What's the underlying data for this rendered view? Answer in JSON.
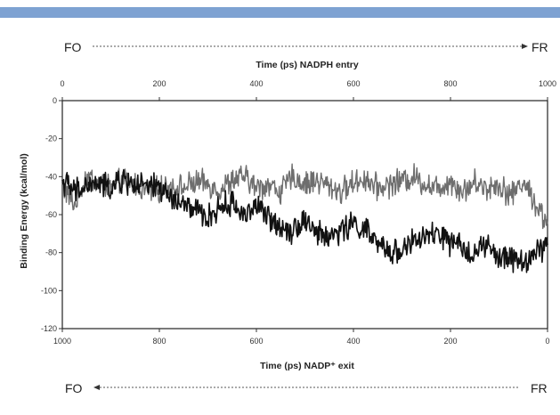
{
  "header_bar_color": "#7ea2d2",
  "direction_top": {
    "start": "FO",
    "end": "FR"
  },
  "direction_bottom": {
    "start": "FO",
    "end": "FR"
  },
  "chart_data": {
    "type": "line",
    "title": "",
    "ylabel": "Binding Energy (kcal/mol)",
    "xlabel_top": "Time (ps) NADPH entry",
    "xlabel_bottom": "Time (ps) NADP⁺ exit",
    "xlim": [
      0,
      1000
    ],
    "ylim": [
      -120,
      0
    ],
    "x_ticks_top": [
      "0",
      "200",
      "400",
      "600",
      "800",
      "1000"
    ],
    "x_ticks_bottom": [
      "1000",
      "800",
      "600",
      "400",
      "200",
      "0"
    ],
    "y_ticks": [
      "0",
      "-20",
      "-40",
      "-60",
      "-80",
      "-100",
      "-120"
    ],
    "grid": false,
    "legend": "none",
    "series": [
      {
        "color": "#6e6e6e",
        "axis": "top",
        "x": [
          0,
          25,
          50,
          75,
          100,
          125,
          150,
          175,
          200,
          225,
          250,
          275,
          300,
          325,
          350,
          375,
          400,
          425,
          450,
          475,
          500,
          525,
          550,
          575,
          600,
          625,
          650,
          675,
          700,
          725,
          750,
          775,
          800,
          825,
          850,
          875,
          900,
          925,
          950,
          975,
          1000
        ],
        "y": [
          -45,
          -55,
          -40,
          -43,
          -46,
          -42,
          -44,
          -48,
          -47,
          -45,
          -46,
          -43,
          -44,
          -47,
          -42,
          -40,
          -46,
          -44,
          -48,
          -40,
          -44,
          -42,
          -45,
          -48,
          -43,
          -41,
          -46,
          -44,
          -42,
          -40,
          -44,
          -46,
          -42,
          -48,
          -43,
          -46,
          -44,
          -50,
          -42,
          -54,
          -65
        ]
      },
      {
        "color": "#111111",
        "axis": "bottom",
        "x": [
          1000,
          975,
          950,
          925,
          900,
          875,
          850,
          825,
          800,
          775,
          750,
          725,
          700,
          675,
          650,
          625,
          600,
          575,
          550,
          525,
          500,
          475,
          450,
          425,
          400,
          375,
          350,
          325,
          300,
          275,
          250,
          225,
          200,
          175,
          150,
          125,
          100,
          75,
          50,
          25,
          0
        ],
        "y": [
          -42,
          -48,
          -45,
          -44,
          -46,
          -42,
          -44,
          -46,
          -45,
          -52,
          -55,
          -58,
          -62,
          -56,
          -54,
          -60,
          -55,
          -62,
          -66,
          -68,
          -62,
          -70,
          -72,
          -68,
          -65,
          -68,
          -76,
          -80,
          -78,
          -74,
          -72,
          -70,
          -75,
          -78,
          -80,
          -76,
          -84,
          -82,
          -86,
          -80,
          -76
        ]
      }
    ]
  }
}
